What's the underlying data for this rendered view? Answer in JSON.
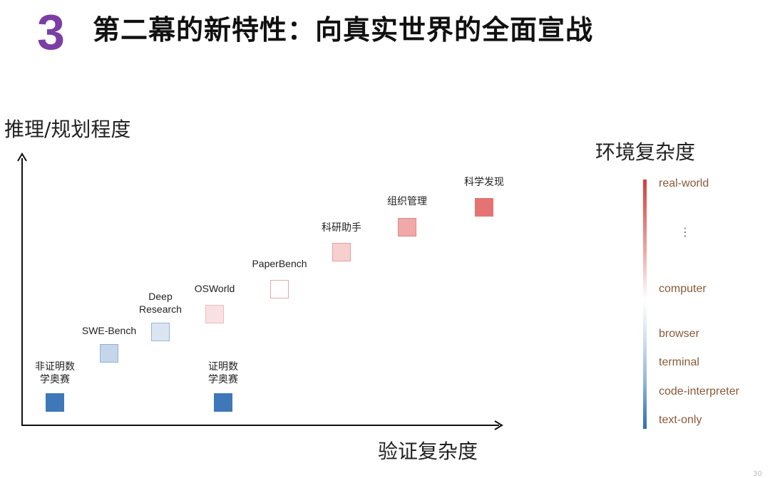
{
  "header": {
    "number": "3",
    "title": "第二幕的新特性：向真实世界的全面宣战"
  },
  "axes": {
    "y_label": "推理/规划程度",
    "x_label": "验证复杂度"
  },
  "legend": {
    "title": "环境复杂度",
    "dots": "⋮",
    "levels": [
      "real-world",
      "computer",
      "browser",
      "terminal",
      "code-interpreter",
      "text-only"
    ],
    "colors": {
      "high": "#d53d3a",
      "mid": "#ffffff",
      "low": "#2f6fb1"
    }
  },
  "nodes": [
    {
      "label_lines": [
        "非证明数",
        "学奥赛"
      ],
      "fill": "#3f78b8",
      "border": "#3f78b8"
    },
    {
      "label_lines": [
        "SWE-Bench"
      ],
      "fill": "#c6d6ea",
      "border": "#8fb0d6"
    },
    {
      "label_lines": [
        "Deep",
        "Research"
      ],
      "fill": "#dbe5f2",
      "border": "#9ab6d9"
    },
    {
      "label_lines": [
        "OSWorld"
      ],
      "fill": "#f8e1e1",
      "border": "#f0bcbc"
    },
    {
      "label_lines": [
        "证明数",
        "学奥赛"
      ],
      "fill": "#3f78b8",
      "border": "#3f78b8"
    },
    {
      "label_lines": [
        "PaperBench"
      ],
      "fill": "#ffffff",
      "border": "#eaa8a8"
    },
    {
      "label_lines": [
        "科研助手"
      ],
      "fill": "#f6cfcf",
      "border": "#e8a0a0"
    },
    {
      "label_lines": [
        "组织管理"
      ],
      "fill": "#f0a8a8",
      "border": "#e08888"
    },
    {
      "label_lines": [
        "科学发现"
      ],
      "fill": "#e57373",
      "border": "#e57373"
    }
  ],
  "page_number": "30"
}
